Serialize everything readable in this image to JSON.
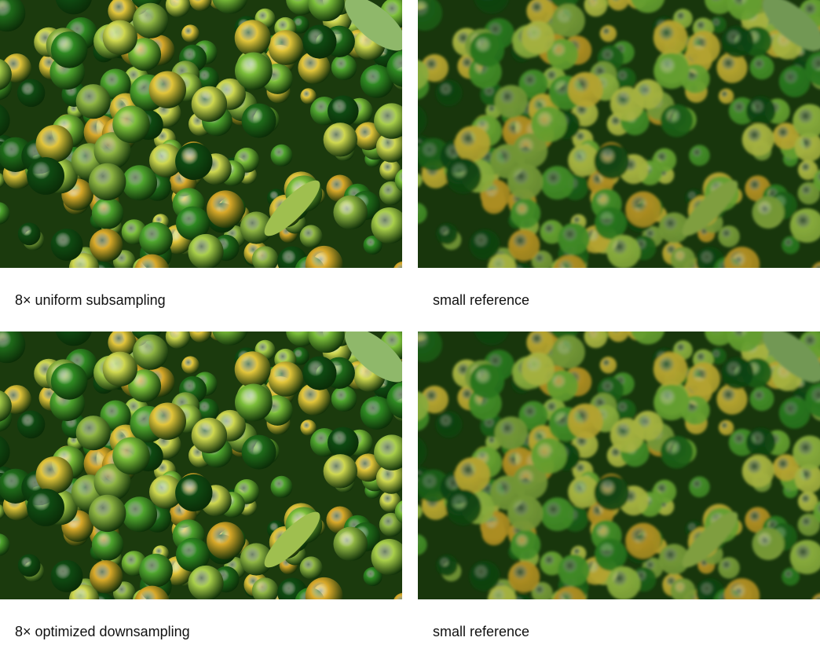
{
  "figure": {
    "panels": [
      {
        "caption": "8× uniform subsampling",
        "style": "sharp"
      },
      {
        "caption": "small reference",
        "style": "blurred"
      },
      {
        "caption": "8× optimized downsampling",
        "style": "sharp"
      },
      {
        "caption": "small reference",
        "style": "blurred"
      }
    ],
    "palette": [
      "#0f4a12",
      "#1f6b1a",
      "#2f8a22",
      "#4fa52e",
      "#7cbf3a",
      "#a9cf4a",
      "#cfd84f",
      "#e2c53a",
      "#d9a929",
      "#8fb543"
    ],
    "background_color": "#1b3a0d"
  }
}
